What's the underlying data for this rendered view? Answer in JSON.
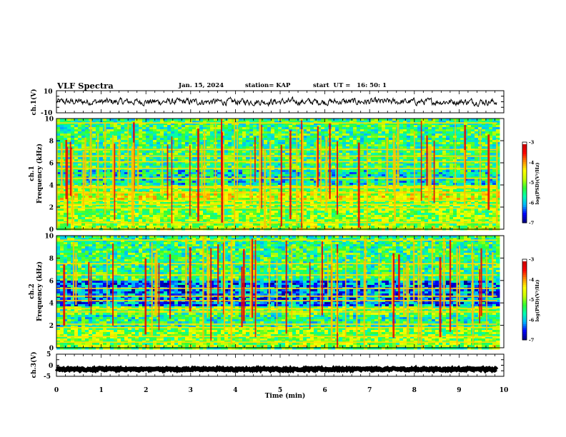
{
  "header": {
    "title": "VLF Spectra",
    "date": "Jan. 15, 2024",
    "station": "station= KAP",
    "start_ut": "start  UT =   16: 50: 1"
  },
  "colors": {
    "waveform": "#000000",
    "colormap": [
      "#00007a",
      "#0000ff",
      "#00b4ff",
      "#00ffb4",
      "#32ff32",
      "#c8ff00",
      "#ffff00",
      "#ff8c00",
      "#ff0000",
      "#c80000",
      "#ffffff"
    ]
  },
  "chart_data": [
    {
      "type": "line",
      "title": "",
      "xlabel": "",
      "ylabel": "ch.1(V)",
      "ylim": [
        -10,
        10
      ],
      "yticks": [
        "10",
        "-10"
      ],
      "xlim": [
        0,
        10
      ],
      "x_data_end": 9.85,
      "series": [
        {
          "values_description_only": false,
          "mean": 0,
          "amplitude": 3
        }
      ]
    },
    {
      "type": "heatmap",
      "ylabel": "ch.1\nFrequency (kHz)",
      "ylim": [
        0,
        10
      ],
      "yticks": [
        "0",
        "2",
        "4",
        "6",
        "8",
        "10"
      ],
      "xlim": [
        0,
        10
      ],
      "x_data_end": 9.85,
      "colorbar": {
        "label": "log(PSD)(V²/Hz)",
        "range": [
          -7,
          -3
        ],
        "ticks": [
          "-3",
          "-4",
          "-5",
          "-6",
          "-7"
        ]
      },
      "bands": [
        {
          "range": [
            0,
            0.3
          ],
          "level": -4.8
        },
        {
          "range": [
            0.3,
            2.6
          ],
          "level": -5.0
        },
        {
          "range": [
            2.6,
            3.5
          ],
          "level": -4.6
        },
        {
          "range": [
            3.5,
            4.0
          ],
          "level": -5.2
        },
        {
          "range": [
            4.0,
            5.4
          ],
          "level": -5.7
        },
        {
          "range": [
            5.4,
            10.0
          ],
          "level": -5.4
        }
      ],
      "lines_khz": [
        0.6,
        1.9,
        2.25,
        2.6,
        3.3,
        3.75,
        3.85,
        4.6,
        5.5,
        6.1,
        6.6,
        7.2,
        9.6
      ]
    },
    {
      "type": "heatmap",
      "ylabel": "ch.2\nFrequency (kHz)",
      "ylim": [
        0,
        10
      ],
      "yticks": [
        "0",
        "2",
        "4",
        "6",
        "8",
        "10"
      ],
      "xlim": [
        0,
        10
      ],
      "x_data_end": 9.85,
      "colorbar": {
        "label": "log(PSD)(V²/Hz)",
        "range": [
          -7,
          -3
        ],
        "ticks": [
          "-3",
          "-4",
          "-5",
          "-6",
          "-7"
        ]
      },
      "bands": [
        {
          "range": [
            0,
            0.3
          ],
          "level": -4.8
        },
        {
          "range": [
            0.3,
            1.7
          ],
          "level": -5.0
        },
        {
          "range": [
            1.7,
            3.0
          ],
          "level": -5.5
        },
        {
          "range": [
            3.0,
            3.6
          ],
          "level": -5.2
        },
        {
          "range": [
            3.6,
            6.0
          ],
          "level": -6.2
        },
        {
          "range": [
            6.0,
            10.0
          ],
          "level": -5.4
        }
      ],
      "lines_khz": [
        0.5,
        1.0,
        1.8,
        2.1,
        3.2,
        3.5,
        4.2,
        4.6,
        5.3,
        6.5,
        7.5,
        9.6
      ]
    },
    {
      "type": "line",
      "ylabel": "ch.3(V)",
      "ylim": [
        -5,
        5
      ],
      "yticks": [
        "5",
        "0",
        "-5"
      ],
      "xlim": [
        0,
        10
      ],
      "x_data_end": 9.85,
      "series": [
        {
          "mean": -1.8,
          "amplitude": 0.4
        }
      ]
    }
  ],
  "x_axis": {
    "label": "Time (min)",
    "ticks": [
      "0",
      "1",
      "2",
      "3",
      "4",
      "5",
      "6",
      "7",
      "8",
      "9",
      "10"
    ]
  }
}
